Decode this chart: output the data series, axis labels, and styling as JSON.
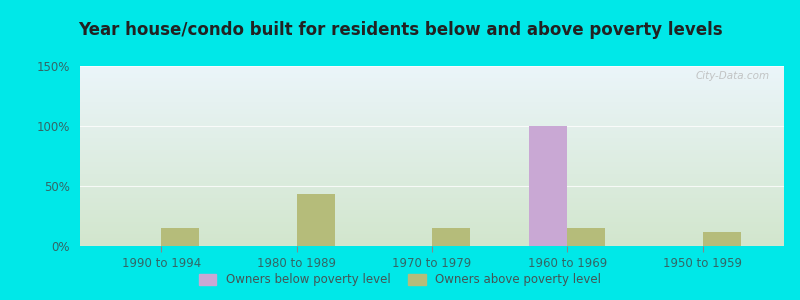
{
  "title": "Year house/condo built for residents below and above poverty levels",
  "categories": [
    "1990 to 1994",
    "1980 to 1989",
    "1970 to 1979",
    "1960 to 1969",
    "1950 to 1959"
  ],
  "below_poverty": [
    0,
    0,
    0,
    100,
    0
  ],
  "above_poverty": [
    15,
    43,
    15,
    15,
    12
  ],
  "below_color": "#c9a8d4",
  "above_color": "#b5bc7a",
  "ylim": [
    0,
    150
  ],
  "yticks": [
    0,
    50,
    100,
    150
  ],
  "ytick_labels": [
    "0%",
    "50%",
    "100%",
    "150%"
  ],
  "bar_width": 0.28,
  "bg_outer": "#00e8e8",
  "bg_inner_top": "#eaf4f0",
  "bg_inner_bottom": "#ddeedd",
  "legend_below": "Owners below poverty level",
  "legend_above": "Owners above poverty level",
  "watermark": "City-Data.com",
  "title_fontsize": 12,
  "axis_fontsize": 8.5,
  "legend_fontsize": 8.5
}
